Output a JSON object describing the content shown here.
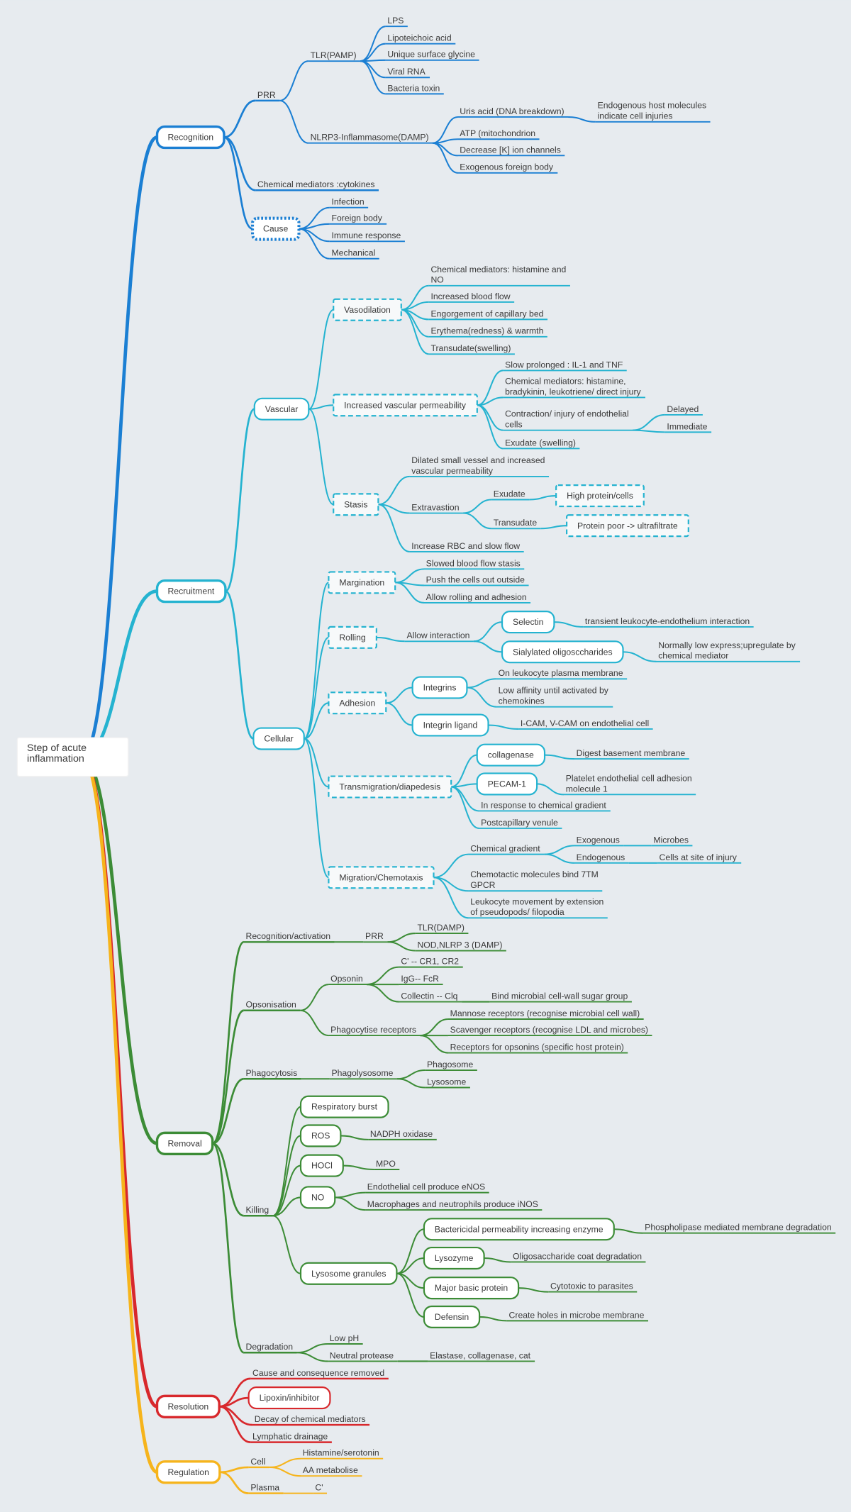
{
  "root": {
    "label": "Step of acute inflammation",
    "children": [
      {
        "label": "Recognition",
        "color": "#1b7fd3",
        "children": [
          {
            "label": "PRR",
            "children": [
              {
                "label": "TLR(PAMP)",
                "children": [
                  {
                    "label": "LPS"
                  },
                  {
                    "label": "Lipoteichoic acid"
                  },
                  {
                    "label": "Unique surface glycine"
                  },
                  {
                    "label": "Viral RNA"
                  },
                  {
                    "label": "Bacteria toxin"
                  }
                ]
              },
              {
                "label": "NLRP3-Inflammasome(DAMP)",
                "children": [
                  {
                    "label": "Uris acid (DNA breakdown)",
                    "children": [
                      {
                        "label": "Endogenous host molecules indicate cell injuries"
                      }
                    ]
                  },
                  {
                    "label": "ATP (mitochondrion"
                  },
                  {
                    "label": "Decrease [K] ion channels"
                  },
                  {
                    "label": "Exogenous foreign body"
                  }
                ]
              }
            ]
          },
          {
            "label": "Chemical mediators :cytokines"
          },
          {
            "label": "Cause",
            "children": [
              {
                "label": "Infection"
              },
              {
                "label": "Foreign body"
              },
              {
                "label": "Immune response"
              },
              {
                "label": "Mechanical"
              }
            ]
          }
        ]
      },
      {
        "label": "Recruitment",
        "color": "#25b3d0",
        "children": [
          {
            "label": "Vascular",
            "children": [
              {
                "label": "Vasodilation",
                "children": [
                  {
                    "label": "Chemical mediators: histamine and NO"
                  },
                  {
                    "label": "Increased blood flow"
                  },
                  {
                    "label": "Engorgement of capillary bed"
                  },
                  {
                    "label": "Erythema(redness) & warmth"
                  },
                  {
                    "label": "Transudate(swelling)"
                  }
                ]
              },
              {
                "label": "Increased vascular permeability",
                "children": [
                  {
                    "label": "Slow prolonged : IL-1 and TNF"
                  },
                  {
                    "label": "Chemical mediators: histamine, bradykinin, leukotriene/ direct injury"
                  },
                  {
                    "label": "Contraction/ injury of endothelial cells",
                    "children": [
                      {
                        "label": "Delayed"
                      },
                      {
                        "label": "Immediate"
                      }
                    ]
                  },
                  {
                    "label": "Exudate (swelling)"
                  }
                ]
              },
              {
                "label": "Stasis",
                "children": [
                  {
                    "label": "Dilated small vessel and increased vascular permeability"
                  },
                  {
                    "label": "Extravastion",
                    "children": [
                      {
                        "label": "Exudate",
                        "children": [
                          {
                            "label": "High protein/cells"
                          }
                        ]
                      },
                      {
                        "label": "Transudate",
                        "children": [
                          {
                            "label": "Protein poor -> ultrafiltrate"
                          }
                        ]
                      }
                    ]
                  },
                  {
                    "label": "Increase RBC and slow flow"
                  }
                ]
              }
            ]
          },
          {
            "label": "Cellular",
            "children": [
              {
                "label": "Margination",
                "children": [
                  {
                    "label": "Slowed blood flow stasis"
                  },
                  {
                    "label": "Push the cells out outside"
                  },
                  {
                    "label": "Allow rolling and adhesion"
                  }
                ]
              },
              {
                "label": "Rolling",
                "children": [
                  {
                    "label": "Allow interaction",
                    "children": [
                      {
                        "label": "Selectin",
                        "children": [
                          {
                            "label": "transient leukocyte-endothelium interaction"
                          }
                        ]
                      },
                      {
                        "label": "Sialylated oligosccharides",
                        "children": [
                          {
                            "label": "Normally low express;upregulate by chemical mediator"
                          }
                        ]
                      }
                    ]
                  }
                ]
              },
              {
                "label": "Adhesion",
                "children": [
                  {
                    "label": "Integrins",
                    "children": [
                      {
                        "label": "On leukocyte plasma membrane"
                      },
                      {
                        "label": "Low affinity until activated by chemokines"
                      }
                    ]
                  },
                  {
                    "label": "Integrin ligand",
                    "children": [
                      {
                        "label": "I-CAM, V-CAM on endothelial cell"
                      }
                    ]
                  }
                ]
              },
              {
                "label": "Transmigration/diapedesis",
                "children": [
                  {
                    "label": "collagenase",
                    "children": [
                      {
                        "label": "Digest basement membrane"
                      }
                    ]
                  },
                  {
                    "label": "PECAM-1",
                    "children": [
                      {
                        "label": "Platelet endothelial cell adhesion molecule 1"
                      }
                    ]
                  },
                  {
                    "label": "In response to chemical gradient"
                  },
                  {
                    "label": "Postcapillary venule"
                  }
                ]
              },
              {
                "label": "Migration/Chemotaxis",
                "children": [
                  {
                    "label": "Chemical gradient",
                    "children": [
                      {
                        "label": "Exogenous",
                        "children": [
                          {
                            "label": "Microbes"
                          }
                        ]
                      },
                      {
                        "label": "Endogenous",
                        "children": [
                          {
                            "label": "Cells at site of injury"
                          }
                        ]
                      }
                    ]
                  },
                  {
                    "label": "Chemotactic molecules bind 7TM GPCR"
                  },
                  {
                    "label": "Leukocyte movement by extension of pseudopods/ filopodia"
                  }
                ]
              }
            ]
          }
        ]
      },
      {
        "label": "Removal",
        "color": "#3c8c36",
        "children": [
          {
            "label": "Recognition/activation",
            "children": [
              {
                "label": "PRR",
                "children": [
                  {
                    "label": "TLR(DAMP)"
                  },
                  {
                    "label": "NOD,NLRP 3 (DAMP)"
                  }
                ]
              }
            ]
          },
          {
            "label": "Opsonisation",
            "children": [
              {
                "label": "Opsonin",
                "children": [
                  {
                    "label": "C' -- CR1, CR2"
                  },
                  {
                    "label": "IgG-- FcR"
                  },
                  {
                    "label": "Collectin -- Clq",
                    "children": [
                      {
                        "label": "Bind microbial cell-wall sugar group"
                      }
                    ]
                  }
                ]
              },
              {
                "label": "Phagocytise receptors",
                "children": [
                  {
                    "label": "Mannose receptors (recognise microbial cell wall)"
                  },
                  {
                    "label": "Scavenger receptors (recognise LDL and microbes)"
                  },
                  {
                    "label": "Receptors for opsonins (specific host protein)"
                  }
                ]
              }
            ]
          },
          {
            "label": "Phagocytosis",
            "children": [
              {
                "label": "Phagolysosome",
                "children": [
                  {
                    "label": "Phagosome"
                  },
                  {
                    "label": "Lysosome"
                  }
                ]
              }
            ]
          },
          {
            "label": "Killing",
            "children": [
              {
                "label": "Respiratory burst"
              },
              {
                "label": "ROS",
                "children": [
                  {
                    "label": "NADPH oxidase"
                  }
                ]
              },
              {
                "label": "HOCl",
                "children": [
                  {
                    "label": "MPO"
                  }
                ]
              },
              {
                "label": "NO",
                "children": [
                  {
                    "label": "Endothelial cell produce eNOS"
                  },
                  {
                    "label": "Macrophages and neutrophils produce iNOS"
                  }
                ]
              },
              {
                "label": "Lysosome granules",
                "children": [
                  {
                    "label": "Bactericidal permeability increasing enzyme",
                    "children": [
                      {
                        "label": "Phospholipase mediated membrane degradation"
                      }
                    ]
                  },
                  {
                    "label": "Lysozyme",
                    "children": [
                      {
                        "label": "Oligosaccharide coat degradation"
                      }
                    ]
                  },
                  {
                    "label": "Major basic protein",
                    "children": [
                      {
                        "label": "Cytotoxic to parasites"
                      }
                    ]
                  },
                  {
                    "label": "Defensin",
                    "children": [
                      {
                        "label": "Create holes in microbe membrane"
                      }
                    ]
                  }
                ]
              }
            ]
          },
          {
            "label": "Degradation",
            "children": [
              {
                "label": "Low pH"
              },
              {
                "label": "Neutral protease",
                "children": [
                  {
                    "label": "Elastase, collagenase, cat"
                  }
                ]
              }
            ]
          }
        ]
      },
      {
        "label": "Resolution",
        "color": "#d8282c",
        "children": [
          {
            "label": "Cause and consequence removed"
          },
          {
            "label": "Lipoxin/inhibitor"
          },
          {
            "label": "Decay of chemical mediators"
          },
          {
            "label": "Lymphatic drainage"
          }
        ]
      },
      {
        "label": "Regulation",
        "color": "#f6b41c",
        "children": [
          {
            "label": "Cell",
            "children": [
              {
                "label": "Histamine/serotonin"
              },
              {
                "label": "AA metabolise"
              }
            ]
          },
          {
            "label": "Plasma",
            "children": [
              {
                "label": "C'"
              }
            ]
          }
        ]
      }
    ]
  }
}
